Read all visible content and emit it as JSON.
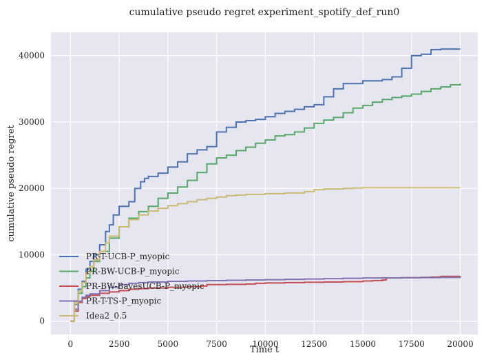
{
  "chart_data": {
    "type": "line",
    "title": "cumulative pseudo regret experiment_spotify_def_run0",
    "xlabel": "Time t",
    "ylabel": "cumulative pseudo regret",
    "xlim": [
      -1000,
      20900
    ],
    "ylim": [
      -2000,
      43500
    ],
    "xticks": [
      0,
      2500,
      5000,
      7500,
      10000,
      12500,
      15000,
      17500,
      20000
    ],
    "yticks": [
      0,
      10000,
      20000,
      30000,
      40000
    ],
    "grid": true,
    "background": "#e6e6f0",
    "legend_position": "lower-left",
    "series": [
      {
        "name": "PR-T-UCB-P_myopic",
        "color": "#4c72b0",
        "x": [
          0,
          200,
          400,
          600,
          800,
          1000,
          1200,
          1500,
          1800,
          2000,
          2200,
          2500,
          3000,
          3300,
          3600,
          3800,
          4000,
          4500,
          5000,
          5500,
          6000,
          6500,
          7000,
          7500,
          8000,
          8500,
          9000,
          9500,
          10000,
          10500,
          11000,
          11500,
          12000,
          12500,
          13000,
          13500,
          14000,
          15000,
          16000,
          16500,
          17000,
          17500,
          18000,
          18500,
          19000,
          20000
        ],
        "y": [
          0,
          3000,
          4800,
          6000,
          7800,
          9000,
          10000,
          11500,
          13500,
          14500,
          16000,
          17300,
          18000,
          20000,
          21000,
          21500,
          21800,
          22300,
          23200,
          24000,
          25200,
          25800,
          26300,
          28500,
          29200,
          30000,
          30200,
          30400,
          30800,
          31300,
          31600,
          31900,
          32300,
          32600,
          33800,
          35000,
          35800,
          36200,
          36400,
          36800,
          38100,
          40000,
          40200,
          40900,
          41000,
          41000
        ]
      },
      {
        "name": "PR-BW-UCB-P_myopic",
        "color": "#55a868",
        "x": [
          0,
          200,
          400,
          600,
          800,
          1000,
          1200,
          1500,
          2000,
          2500,
          3000,
          3500,
          4000,
          4500,
          5000,
          5500,
          6000,
          6500,
          7000,
          7500,
          8000,
          8500,
          9000,
          9500,
          10000,
          10500,
          11000,
          11500,
          12000,
          12500,
          13000,
          13500,
          14000,
          14500,
          15000,
          15500,
          16000,
          16500,
          17000,
          17500,
          18000,
          18500,
          19000,
          19500,
          20000
        ],
        "y": [
          0,
          2500,
          4200,
          5200,
          6500,
          7500,
          9000,
          10500,
          12500,
          14200,
          15500,
          16500,
          17300,
          18500,
          19300,
          20200,
          21200,
          22400,
          23700,
          24600,
          25000,
          25700,
          26200,
          26800,
          27300,
          27900,
          28100,
          28500,
          29100,
          29800,
          30300,
          30700,
          31400,
          32100,
          32500,
          33000,
          33400,
          33700,
          33900,
          34200,
          34600,
          35000,
          35300,
          35600,
          35800
        ]
      },
      {
        "name": "PR-BW-BayesUCB-P_myopic",
        "color": "#c44e52",
        "x": [
          0,
          200,
          400,
          600,
          800,
          1000,
          1500,
          2000,
          2500,
          3000,
          3500,
          4000,
          5000,
          6000,
          6700,
          7000,
          8000,
          9000,
          9500,
          10000,
          11000,
          12000,
          13000,
          14000,
          15000,
          15500,
          16000,
          16200,
          17000,
          18000,
          18500,
          19000,
          20000
        ],
        "y": [
          0,
          1500,
          2800,
          3400,
          3700,
          3900,
          4200,
          4400,
          4600,
          4800,
          4900,
          5000,
          5100,
          5200,
          5300,
          5500,
          5550,
          5600,
          5700,
          5750,
          5800,
          5850,
          5900,
          5950,
          6050,
          6100,
          6200,
          6500,
          6550,
          6600,
          6650,
          6750,
          6800
        ]
      },
      {
        "name": "PR-T-TS-P_myopic",
        "color": "#8172b2",
        "x": [
          0,
          200,
          400,
          600,
          800,
          1000,
          1500,
          2000,
          2500,
          3000,
          3500,
          4000,
          5000,
          6000,
          7000,
          8000,
          9000,
          10000,
          11000,
          12000,
          13000,
          14000,
          15000,
          16000,
          17000,
          18000,
          19000,
          20000
        ],
        "y": [
          0,
          1800,
          3000,
          3600,
          3900,
          4100,
          4600,
          5100,
          5500,
          5700,
          5800,
          5900,
          6000,
          6050,
          6100,
          6150,
          6200,
          6250,
          6300,
          6350,
          6400,
          6450,
          6500,
          6520,
          6540,
          6560,
          6580,
          6600
        ]
      },
      {
        "name": "Idea2_0.5",
        "color": "#ccb974",
        "x": [
          0,
          200,
          400,
          600,
          800,
          1000,
          1200,
          1500,
          1800,
          2000,
          2500,
          3000,
          3500,
          4000,
          4500,
          5000,
          5500,
          6000,
          6500,
          7000,
          7500,
          8000,
          8500,
          9000,
          10000,
          11000,
          12000,
          12500,
          13000,
          14000,
          14500,
          15000,
          16000,
          17000,
          18000,
          19000,
          20000
        ],
        "y": [
          0,
          2800,
          4500,
          5800,
          7200,
          8200,
          9200,
          10500,
          11800,
          12800,
          14200,
          15300,
          16000,
          16600,
          17000,
          17400,
          17700,
          18000,
          18300,
          18500,
          18700,
          18900,
          19000,
          19100,
          19200,
          19300,
          19500,
          19800,
          19900,
          20000,
          20050,
          20100,
          20100,
          20100,
          20100,
          20100,
          20100
        ]
      }
    ]
  }
}
